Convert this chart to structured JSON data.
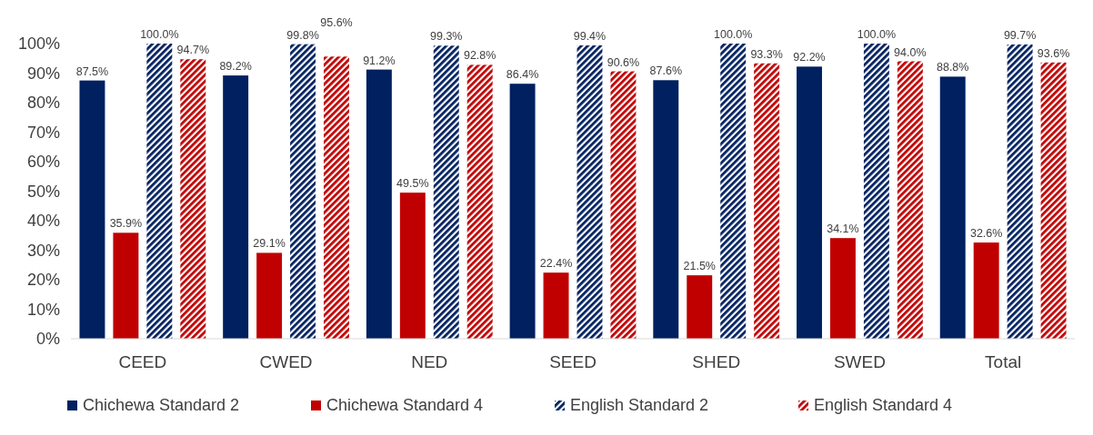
{
  "chart_data": {
    "type": "bar",
    "categories": [
      "CEED",
      "CWED",
      "NED",
      "SEED",
      "SHED",
      "SWED",
      "Total"
    ],
    "series": [
      {
        "name": "Chichewa Standard 2",
        "color": "#002060",
        "values": [
          87.5,
          89.2,
          91.2,
          86.4,
          87.6,
          92.2,
          88.8
        ]
      },
      {
        "name": "Chichewa Standard 4",
        "color": "#c00000",
        "values": [
          35.9,
          29.1,
          49.5,
          22.4,
          21.5,
          34.1,
          32.6
        ]
      },
      {
        "name": "English Standard 2",
        "color": "#002060",
        "values": [
          100.0,
          99.8,
          99.3,
          99.4,
          100.0,
          100.0,
          99.7
        ]
      },
      {
        "name": "English Standard 4",
        "color": "#c00000",
        "values": [
          94.7,
          95.6,
          92.8,
          90.6,
          93.3,
          94.0,
          93.6
        ]
      }
    ],
    "ylim": [
      0,
      100
    ],
    "yticks": [
      {
        "value": 0,
        "label": "0%"
      },
      {
        "value": 10,
        "label": "10%"
      },
      {
        "value": 20,
        "label": "20%"
      },
      {
        "value": 30,
        "label": "30%"
      },
      {
        "value": 40,
        "label": "40%"
      },
      {
        "value": 50,
        "label": "50%"
      },
      {
        "value": 60,
        "label": "60%"
      },
      {
        "value": 70,
        "label": "70%"
      },
      {
        "value": 80,
        "label": "80%"
      },
      {
        "value": 90,
        "label": "90%"
      },
      {
        "value": 100,
        "label": "100%"
      }
    ],
    "value_labels": [
      [
        "87.5%",
        "89.2%",
        "91.2%",
        "86.4%",
        "87.6%",
        "92.2%",
        "88.8%"
      ],
      [
        "35.9%",
        "29.1%",
        "49.5%",
        "22.4%",
        "21.5%",
        "34.1%",
        "32.6%"
      ],
      [
        "100.0%",
        "99.8%",
        "99.3%",
        "99.4%",
        "100.0%",
        "100.0%",
        "99.7%"
      ],
      [
        "94.7%",
        "95.6%",
        "92.8%",
        "90.6%",
        "93.3%",
        "94.0%",
        "93.6%"
      ]
    ],
    "legend": "bottom",
    "grid": false
  }
}
